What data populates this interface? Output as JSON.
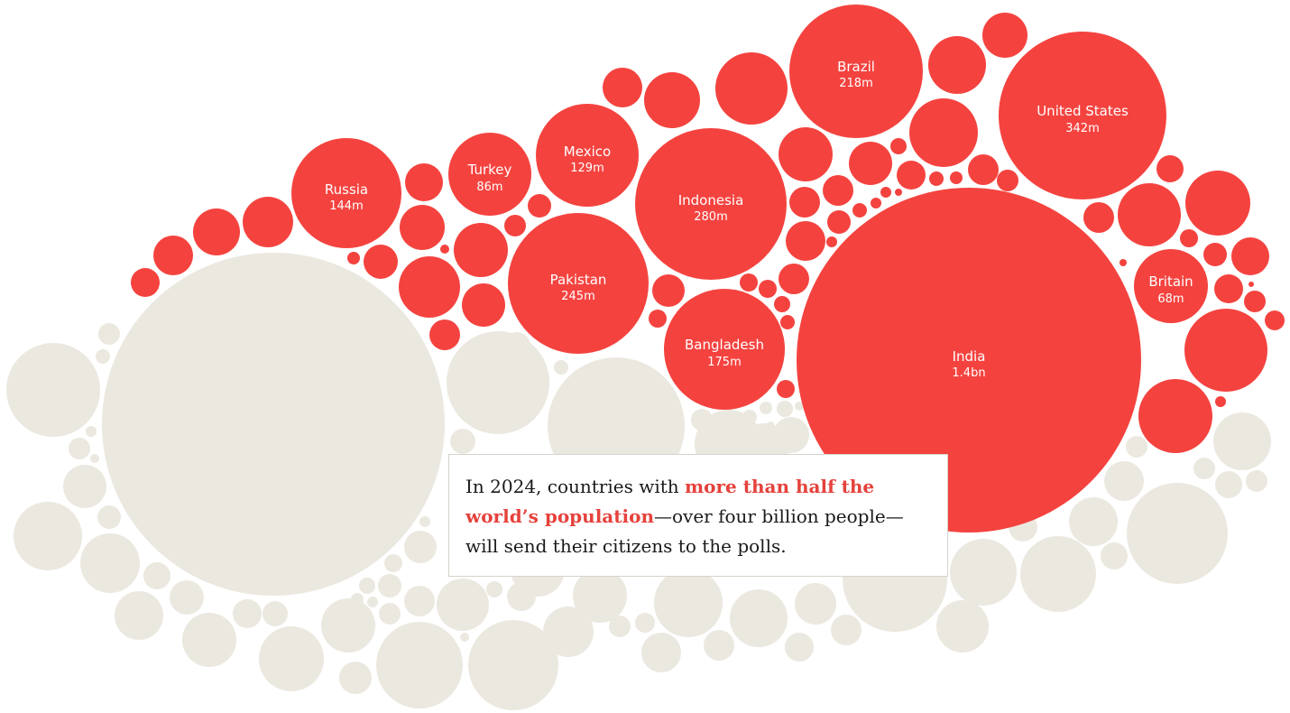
{
  "caption": {
    "before": "In 2024, countries with ",
    "highlight": "more than half the world’s population",
    "after": "—over four billion people—will send their citizens to the polls."
  },
  "colors": {
    "voting": "#f4433f",
    "not_voting": "#ebe8e0",
    "label": "#ffffff",
    "highlight_text": "#e5423c"
  },
  "chart_data": {
    "type": "packed-bubble",
    "title": "",
    "series": [
      {
        "name": "",
        "group": "voting"
      },
      {
        "name": "",
        "group": "not_voting"
      }
    ],
    "labeled_points": [
      {
        "country": "India",
        "value_label": "1.4bn",
        "value": 1400
      },
      {
        "country": "United States",
        "value_label": "342m",
        "value": 342
      },
      {
        "country": "Indonesia",
        "value_label": "280m",
        "value": 280
      },
      {
        "country": "Pakistan",
        "value_label": "245m",
        "value": 245
      },
      {
        "country": "Brazil",
        "value_label": "218m",
        "value": 218
      },
      {
        "country": "Bangladesh",
        "value_label": "175m",
        "value": 175
      },
      {
        "country": "Russia",
        "value_label": "144m",
        "value": 144
      },
      {
        "country": "Mexico",
        "value_label": "129m",
        "value": 129
      },
      {
        "country": "Turkey",
        "value_label": "86m",
        "value": 86
      },
      {
        "country": "Britain",
        "value_label": "68m",
        "value": 68
      }
    ]
  }
}
